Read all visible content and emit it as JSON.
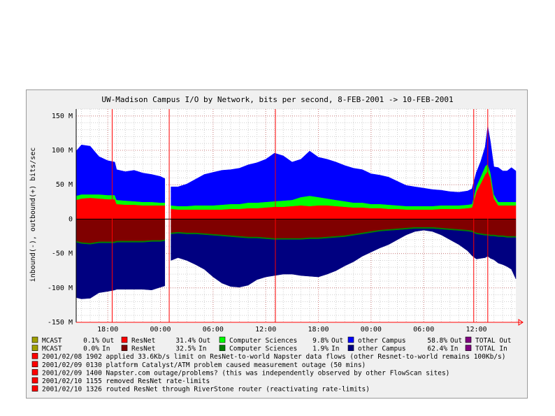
{
  "chart_data": {
    "type": "area",
    "title": "UW-Madison Campus I/O by Network, bits per second, 8-FEB-2001 -> 10-FEB-2001",
    "ylabel": "inbound(-), outbound(+) bits/sec",
    "ylim": [
      -150,
      160
    ],
    "y_ticks": [
      {
        "value": 150,
        "label": "150 M"
      },
      {
        "value": 100,
        "label": "100 M"
      },
      {
        "value": 50,
        "label": "50 M"
      },
      {
        "value": 0,
        "label": "0"
      },
      {
        "value": -50,
        "label": "-50 M"
      },
      {
        "value": -100,
        "label": "-100 M"
      },
      {
        "value": -150,
        "label": "-150 M"
      }
    ],
    "x_ticks": [
      {
        "hour": 18,
        "label": "18:00"
      },
      {
        "hour": 24,
        "label": "00:00"
      },
      {
        "hour": 30,
        "label": "06:00"
      },
      {
        "hour": 36,
        "label": "12:00"
      },
      {
        "hour": 42,
        "label": "18:00"
      },
      {
        "hour": 48,
        "label": "00:00"
      },
      {
        "hour": 54,
        "label": "06:00"
      },
      {
        "hour": 60,
        "label": "12:00"
      }
    ],
    "xlim": [
      14.4,
      64.5
    ],
    "grid": true,
    "gap": [
      24.6,
      25.2
    ],
    "series_colors": {
      "MCAST": "#a0a000",
      "ResNet_out": "#ff0000",
      "CS_out": "#00ff00",
      "other_out": "#0000ff",
      "ResNet_in": "#800000",
      "CS_in": "#008000",
      "other_in": "#000080",
      "total": "#800080"
    },
    "x": [
      14.4,
      15,
      16,
      17,
      18,
      18.8,
      19,
      20,
      21,
      22,
      23,
      24,
      24.5,
      25.2,
      26,
      27,
      28,
      29,
      30,
      31,
      32,
      33,
      34,
      35,
      36,
      37,
      38,
      39,
      40,
      41,
      42,
      43,
      44,
      45,
      46,
      47,
      48,
      49,
      50,
      51,
      52,
      53,
      54,
      55,
      56,
      57,
      58,
      59,
      59.5,
      60,
      60.5,
      61,
      61.3,
      61.6,
      62,
      62.5,
      63,
      63.5,
      64,
      64.5
    ],
    "series": [
      {
        "name": "ResNet",
        "direction": "out",
        "values": [
          28,
          30,
          31,
          30,
          29,
          29,
          22,
          21,
          21,
          20,
          20,
          20,
          20,
          15,
          14,
          14,
          14,
          14,
          14,
          14,
          15,
          15,
          16,
          16,
          17,
          18,
          18,
          19,
          20,
          19,
          20,
          20,
          19,
          18,
          17,
          17,
          16,
          16,
          15,
          15,
          14,
          14,
          14,
          14,
          15,
          15,
          15,
          16,
          17,
          40,
          52,
          65,
          70,
          60,
          30,
          20,
          20,
          20,
          20,
          20
        ]
      },
      {
        "name": "Computer Sciences",
        "direction": "out",
        "values": [
          6,
          6,
          5,
          6,
          6,
          6,
          6,
          6,
          5,
          5,
          5,
          4,
          4,
          5,
          5,
          5,
          6,
          6,
          6,
          7,
          7,
          7,
          8,
          8,
          8,
          8,
          9,
          9,
          12,
          15,
          12,
          10,
          9,
          8,
          7,
          7,
          6,
          6,
          6,
          5,
          5,
          5,
          5,
          5,
          5,
          5,
          5,
          5,
          5,
          8,
          10,
          12,
          10,
          8,
          6,
          5,
          5,
          5,
          5,
          5
        ]
      },
      {
        "name": "other Campus",
        "direction": "out",
        "values": [
          65,
          72,
          70,
          55,
          50,
          48,
          44,
          42,
          45,
          42,
          40,
          38,
          35,
          27,
          28,
          32,
          38,
          45,
          48,
          50,
          50,
          52,
          55,
          58,
          62,
          70,
          65,
          55,
          55,
          65,
          58,
          57,
          55,
          52,
          50,
          48,
          44,
          42,
          40,
          35,
          30,
          28,
          26,
          24,
          22,
          20,
          19,
          20,
          22,
          20,
          22,
          28,
          55,
          45,
          40,
          50,
          45,
          45,
          50,
          45
        ]
      },
      {
        "name": "ResNet",
        "direction": "in",
        "values": [
          -32,
          -34,
          -35,
          -33,
          -33,
          -33,
          -32,
          -32,
          -32,
          -32,
          -31,
          -31,
          -30,
          -20,
          -19,
          -20,
          -20,
          -21,
          -22,
          -23,
          -24,
          -25,
          -26,
          -26,
          -27,
          -28,
          -28,
          -28,
          -28,
          -27,
          -27,
          -26,
          -25,
          -24,
          -22,
          -20,
          -18,
          -16,
          -15,
          -14,
          -13,
          -12,
          -12,
          -12,
          -13,
          -14,
          -15,
          -16,
          -17,
          -20,
          -21,
          -22,
          -22,
          -23,
          -23,
          -24,
          -24,
          -25,
          -25,
          -25
        ]
      },
      {
        "name": "Computer Sciences",
        "direction": "in",
        "values": [
          -2,
          -2,
          -2,
          -2,
          -2,
          -2,
          -2,
          -2,
          -2,
          -2,
          -2,
          -2,
          -2,
          -2,
          -2,
          -2,
          -2,
          -2,
          -2,
          -2,
          -2,
          -2,
          -2,
          -2,
          -2,
          -2,
          -2,
          -2,
          -2,
          -2,
          -2,
          -2,
          -2,
          -2,
          -2,
          -2,
          -2,
          -2,
          -2,
          -2,
          -2,
          -2,
          -2,
          -2,
          -2,
          -2,
          -2,
          -2,
          -2,
          -2,
          -2,
          -2,
          -2,
          -2,
          -2,
          -2,
          -2,
          -2,
          -2,
          -2
        ]
      },
      {
        "name": "other Campus",
        "direction": "in",
        "values": [
          -80,
          -80,
          -78,
          -72,
          -70,
          -68,
          -68,
          -68,
          -68,
          -68,
          -70,
          -66,
          -65,
          -38,
          -35,
          -38,
          -44,
          -50,
          -60,
          -68,
          -72,
          -72,
          -68,
          -60,
          -55,
          -52,
          -50,
          -50,
          -52,
          -54,
          -55,
          -52,
          -48,
          -42,
          -38,
          -32,
          -28,
          -24,
          -20,
          -14,
          -8,
          -4,
          -2,
          -4,
          -8,
          -14,
          -20,
          -28,
          -34,
          -36,
          -34,
          -32,
          -30,
          -32,
          -34,
          -38,
          -40,
          -42,
          -46,
          -60
        ]
      }
    ],
    "events_x": [
      18.5,
      25.0,
      37.1,
      59.7,
      61.3
    ],
    "legend": {
      "rows_out": [
        {
          "swatch": "#a0a000",
          "name": "MCAST",
          "pct": "0.1%",
          "dir": "Out"
        },
        {
          "swatch": "#ff0000",
          "name": "ResNet",
          "pct": "31.4%",
          "dir": "Out"
        },
        {
          "swatch": "#00ff00",
          "name": "Computer Sciences",
          "pct": "9.8%",
          "dir": "Out"
        },
        {
          "swatch": "#0000ff",
          "name": "other Campus",
          "pct": "58.8%",
          "dir": "Out"
        },
        {
          "swatch": "#800080",
          "name": "TOTAL",
          "pct": "",
          "dir": "Out"
        }
      ],
      "rows_in": [
        {
          "swatch": "#a0a000",
          "name": "MCAST",
          "pct": "0.0%",
          "dir": "In"
        },
        {
          "swatch": "#800000",
          "name": "ResNet",
          "pct": "32.5%",
          "dir": "In"
        },
        {
          "swatch": "#008000",
          "name": "Computer Sciences",
          "pct": "1.9%",
          "dir": "In"
        },
        {
          "swatch": "#000080",
          "name": "other Campus",
          "pct": "62.4%",
          "dir": "In"
        },
        {
          "swatch": "#800080",
          "name": "TOTAL",
          "pct": "",
          "dir": "In"
        }
      ],
      "events": [
        "2001/02/08 1902 applied 33.6Kb/s limit on ResNet-to-world Napster data flows (other Resnet-to-world remains 100Kb/s)",
        "2001/02/09 0130 platform Catalyst/ATM problem caused measurement outage (50 mins)",
        "2001/02/09 1400 Napster.com outage/problems? (this was independently observed by other FlowScan sites)",
        "2001/02/10 1155 removed ResNet rate-limits",
        "2001/02/10 1326 routed ResNet through RiverStone router (reactivating rate-limits)"
      ],
      "event_color": "#ff0000"
    }
  }
}
